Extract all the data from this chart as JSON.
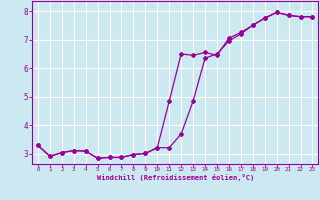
{
  "xlabel": "Windchill (Refroidissement éolien,°C)",
  "background_color": "#cce8f0",
  "line_color": "#990099",
  "grid_color": "#ffffff",
  "xlim": [
    -0.5,
    23.5
  ],
  "ylim": [
    2.65,
    8.35
  ],
  "xticks": [
    0,
    1,
    2,
    3,
    4,
    5,
    6,
    7,
    8,
    9,
    10,
    11,
    12,
    13,
    14,
    15,
    16,
    17,
    18,
    19,
    20,
    21,
    22,
    23
  ],
  "yticks": [
    3,
    4,
    5,
    6,
    7,
    8
  ],
  "line1_x": [
    0,
    1,
    2,
    3,
    4,
    5,
    6,
    7,
    8,
    9,
    10,
    11,
    12,
    13,
    14,
    15,
    16,
    17,
    18,
    19,
    20,
    21,
    22,
    23
  ],
  "line1_y": [
    3.3,
    2.92,
    3.05,
    3.12,
    3.1,
    2.85,
    2.88,
    2.88,
    2.98,
    3.02,
    3.22,
    3.22,
    3.7,
    4.85,
    6.35,
    6.5,
    6.95,
    7.2,
    7.5,
    7.75,
    7.95,
    7.85,
    7.8,
    7.8
  ],
  "line2_x": [
    0,
    1,
    2,
    3,
    4,
    5,
    6,
    7,
    8,
    9,
    10,
    11,
    12,
    13,
    14,
    15,
    16,
    17,
    18,
    19,
    20,
    21,
    22,
    23
  ],
  "line2_y": [
    3.3,
    2.92,
    3.05,
    3.12,
    3.1,
    2.85,
    2.88,
    2.88,
    2.98,
    3.02,
    3.22,
    4.85,
    6.5,
    6.45,
    6.55,
    6.45,
    7.05,
    7.25,
    7.5,
    7.75,
    7.95,
    7.85,
    7.8,
    7.8
  ]
}
